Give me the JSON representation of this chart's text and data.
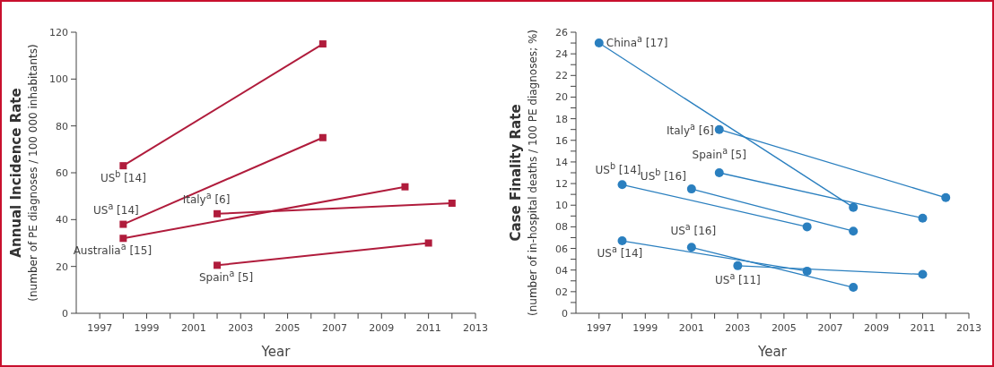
{
  "chart_data": [
    {
      "type": "line",
      "ylabel": "Annual Incidence Rate\n(number of PE diagnoses / 100 000 inhabitants)",
      "xlabel": "Year",
      "marker": "square",
      "line_style": "solid",
      "grid": false,
      "xlim": [
        1996,
        2013
      ],
      "xticks": [
        {
          "value": 1997,
          "label": "1997"
        },
        {
          "value": 1998,
          "label": null
        },
        {
          "value": 1999,
          "label": "1999"
        },
        {
          "value": 2000,
          "label": null
        },
        {
          "value": 2001,
          "label": "2001"
        },
        {
          "value": 2002,
          "label": null
        },
        {
          "value": 2003,
          "label": "2003"
        },
        {
          "value": 2004,
          "label": null
        },
        {
          "value": 2005,
          "label": "2005"
        },
        {
          "value": 2006,
          "label": null
        },
        {
          "value": 2007,
          "label": "2007"
        },
        {
          "value": 2008,
          "label": null
        },
        {
          "value": 2009,
          "label": "2009"
        },
        {
          "value": 2010,
          "label": null
        },
        {
          "value": 2011,
          "label": "2011"
        },
        {
          "value": 2012,
          "label": null
        },
        {
          "value": 2013,
          "label": "2013"
        }
      ],
      "ylim": [
        0,
        120
      ],
      "yticks": [
        0,
        20,
        40,
        60,
        80,
        100,
        120
      ],
      "series": [
        {
          "name": "US$^{b}$ [14]",
          "color": "#b01c3c",
          "x": [
            1998,
            2006.5
          ],
          "values": [
            63,
            115
          ]
        },
        {
          "name": "US$^{a}$ [14]",
          "color": "#b01c3c",
          "x": [
            1998,
            2006.5
          ],
          "values": [
            38,
            75
          ]
        },
        {
          "name": "Australia$^{a}$ [15]",
          "color": "#b01c3c",
          "x": [
            1998,
            2010
          ],
          "values": [
            32,
            54
          ]
        },
        {
          "name": "Italy$^{a}$ [6]",
          "color": "#b01c3c",
          "x": [
            2002,
            2012
          ],
          "values": [
            42.5,
            47
          ]
        },
        {
          "name": "Spain$^{a}$ [5]",
          "color": "#b01c3c",
          "x": [
            2002,
            2011
          ],
          "values": [
            20.5,
            30
          ]
        }
      ]
    },
    {
      "type": "line",
      "ylabel": "Case Finality Rate\n(number of in-hospital deaths / 100 PE diagnoses; %)",
      "xlabel": "Year",
      "marker": "circle",
      "line_style": "solid",
      "grid": false,
      "xlim": [
        1996,
        2013
      ],
      "xticks": [
        {
          "value": 1997,
          "label": "1997"
        },
        {
          "value": 1998,
          "label": null
        },
        {
          "value": 1999,
          "label": "1999"
        },
        {
          "value": 2000,
          "label": null
        },
        {
          "value": 2001,
          "label": "2001"
        },
        {
          "value": 2002,
          "label": null
        },
        {
          "value": 2003,
          "label": "2003"
        },
        {
          "value": 2004,
          "label": null
        },
        {
          "value": 2005,
          "label": "2005"
        },
        {
          "value": 2006,
          "label": null
        },
        {
          "value": 2007,
          "label": "2007"
        },
        {
          "value": 2008,
          "label": null
        },
        {
          "value": 2009,
          "label": "2009"
        },
        {
          "value": 2010,
          "label": null
        },
        {
          "value": 2011,
          "label": "2011"
        },
        {
          "value": 2012,
          "label": null
        },
        {
          "value": 2013,
          "label": "2013"
        }
      ],
      "ylim": [
        0,
        26
      ],
      "yticks": [
        0,
        {
          "value": 1,
          "label": null
        },
        {
          "value": 2,
          "label": "02"
        },
        {
          "value": 3,
          "label": null
        },
        {
          "value": 4,
          "label": "04"
        },
        {
          "value": 5,
          "label": null
        },
        {
          "value": 6,
          "label": "06"
        },
        {
          "value": 7,
          "label": null
        },
        {
          "value": 8,
          "label": "08"
        },
        {
          "value": 9,
          "label": null
        },
        10,
        {
          "value": 11,
          "label": null
        },
        12,
        {
          "value": 13,
          "label": null
        },
        14,
        {
          "value": 15,
          "label": null
        },
        16,
        {
          "value": 17,
          "label": null
        },
        18,
        {
          "value": 19,
          "label": null
        },
        20,
        {
          "value": 21,
          "label": null
        },
        22,
        {
          "value": 23,
          "label": null
        },
        24,
        {
          "value": 25,
          "label": null
        },
        26
      ],
      "series": [
        {
          "name": "China$^{a}$ [17]",
          "color": "#2a7fbf",
          "x": [
            1997,
            2008
          ],
          "values": [
            25,
            9.8
          ]
        },
        {
          "name": "Italy$^{a}$ [6]",
          "color": "#2a7fbf",
          "x": [
            2002.2,
            2012
          ],
          "values": [
            17,
            10.7
          ]
        },
        {
          "name": "Spain$^{a}$ [5]",
          "color": "#2a7fbf",
          "x": [
            2002.2,
            2011
          ],
          "values": [
            13,
            8.8
          ]
        },
        {
          "name": "US$^{b}$ [14]",
          "color": "#2a7fbf",
          "x": [
            1998,
            2006
          ],
          "values": [
            11.9,
            8
          ]
        },
        {
          "name": "US$^{b}$ [16]",
          "color": "#2a7fbf",
          "x": [
            2001,
            2008
          ],
          "values": [
            11.5,
            7.6
          ]
        },
        {
          "name": "US$^{a}$ [14]",
          "color": "#2a7fbf",
          "x": [
            1998,
            2006
          ],
          "values": [
            6.7,
            3.9
          ]
        },
        {
          "name": "US$^{a}$ [16]",
          "color": "#2a7fbf",
          "x": [
            2001,
            2008
          ],
          "values": [
            6.1,
            2.4
          ]
        },
        {
          "name": "US$^{a}$ [11]",
          "color": "#2a7fbf",
          "x": [
            2003,
            2011
          ],
          "values": [
            4.4,
            3.6
          ]
        }
      ]
    }
  ]
}
